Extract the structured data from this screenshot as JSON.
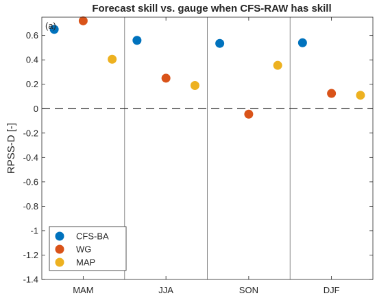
{
  "chart_data": {
    "type": "scatter",
    "title": "Forecast skill vs. gauge when CFS-RAW has skill",
    "panel_label": "(a)",
    "xlabel": "",
    "ylabel": "RPSS-D [-]",
    "categories": [
      "MAM",
      "JJA",
      "SON",
      "DJF"
    ],
    "ylim": [
      -1.4,
      0.75
    ],
    "yticks": [
      0.6,
      0.4,
      0.2,
      0,
      -0.2,
      -0.4,
      -0.6,
      -0.8,
      -1,
      -1.2,
      -1.4
    ],
    "ytick_labels": [
      "0.6",
      "0.4",
      "0.2",
      "0",
      "-0.2",
      "-0.4",
      "-0.6",
      "-0.8",
      "-1",
      "-1.2",
      "-1.4"
    ],
    "reference_line": 0,
    "legend_position": "bottom-left",
    "grid": false,
    "series": [
      {
        "name": "CFS-BA",
        "color": "#0072BD",
        "values": [
          0.65,
          0.56,
          0.535,
          0.54
        ]
      },
      {
        "name": "WG",
        "color": "#D95319",
        "values": [
          0.72,
          0.25,
          -0.045,
          0.125
        ]
      },
      {
        "name": "MAP",
        "color": "#EDB120",
        "values": [
          0.405,
          0.19,
          0.355,
          0.11
        ]
      }
    ]
  }
}
